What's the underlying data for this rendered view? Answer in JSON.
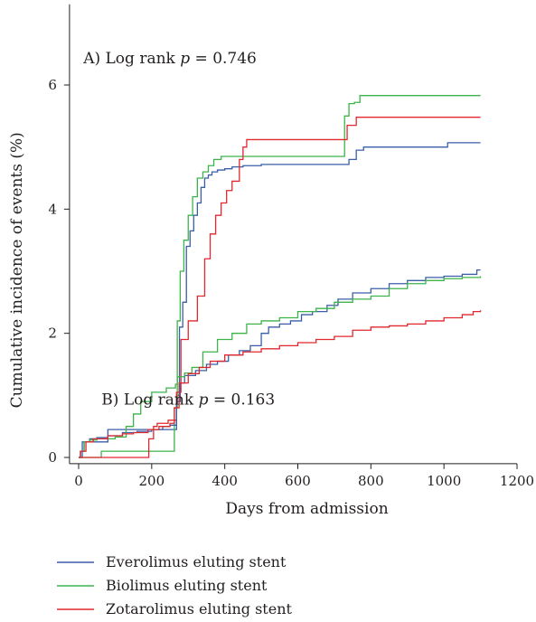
{
  "chart_data": {
    "type": "line",
    "title": "",
    "xlabel": "Days from admission",
    "ylabel": "Cumulative incidence of events (%)",
    "xlim": [
      -25,
      1200
    ],
    "ylim": [
      -0.1,
      7.3
    ],
    "x_ticks": [
      0,
      200,
      400,
      600,
      800,
      1000,
      1200
    ],
    "y_ticks": [
      0,
      2,
      4,
      6
    ],
    "grid": false,
    "legend_position": "bottom-left",
    "legend": [
      {
        "label": "Everolimus eluting stent",
        "color": "#3a5ea8"
      },
      {
        "label": "Biolimus eluting stent",
        "color": "#3cb44a"
      },
      {
        "label": "Zotarolimus eluting stent",
        "color": "#e0282e"
      }
    ],
    "annotations": [
      {
        "text_pre": "A) Log rank ",
        "text_p": "p",
        "text_post": " = 0.746",
        "x": 250,
        "y": 6.35
      },
      {
        "text_pre": "B) Log rank ",
        "text_p": "p",
        "text_post": " = 0.163",
        "x": 300,
        "y": 0.85
      }
    ],
    "panels": [
      {
        "name": "A",
        "series": [
          {
            "legend_index": 0,
            "points": [
              [
                0,
                0
              ],
              [
                5,
                0
              ],
              [
                10,
                0.25
              ],
              [
                70,
                0.25
              ],
              [
                80,
                0.45
              ],
              [
                260,
                0.45
              ],
              [
                268,
                1.0
              ],
              [
                276,
                2.1
              ],
              [
                285,
                2.5
              ],
              [
                295,
                3.4
              ],
              [
                305,
                3.65
              ],
              [
                315,
                3.9
              ],
              [
                325,
                4.1
              ],
              [
                335,
                4.35
              ],
              [
                345,
                4.5
              ],
              [
                355,
                4.55
              ],
              [
                365,
                4.6
              ],
              [
                380,
                4.63
              ],
              [
                400,
                4.65
              ],
              [
                420,
                4.68
              ],
              [
                450,
                4.7
              ],
              [
                500,
                4.72
              ],
              [
                740,
                4.8
              ],
              [
                760,
                4.95
              ],
              [
                780,
                5.0
              ],
              [
                1000,
                5.0
              ],
              [
                1010,
                5.07
              ],
              [
                1100,
                5.07
              ]
            ]
          },
          {
            "legend_index": 1,
            "points": [
              [
                0,
                0
              ],
              [
                60,
                0
              ],
              [
                62,
                0.1
              ],
              [
                250,
                0.1
              ],
              [
                262,
                0.8
              ],
              [
                270,
                2.2
              ],
              [
                278,
                3.0
              ],
              [
                288,
                3.5
              ],
              [
                300,
                3.9
              ],
              [
                312,
                4.2
              ],
              [
                325,
                4.5
              ],
              [
                340,
                4.6
              ],
              [
                355,
                4.7
              ],
              [
                370,
                4.8
              ],
              [
                390,
                4.85
              ],
              [
                720,
                4.85
              ],
              [
                728,
                5.5
              ],
              [
                740,
                5.7
              ],
              [
                755,
                5.72
              ],
              [
                770,
                5.83
              ],
              [
                1100,
                5.83
              ]
            ]
          },
          {
            "legend_index": 2,
            "points": [
              [
                0,
                0
              ],
              [
                180,
                0
              ],
              [
                192,
                0.3
              ],
              [
                205,
                0.5
              ],
              [
                215,
                0.55
              ],
              [
                245,
                0.6
              ],
              [
                268,
                1.05
              ],
              [
                280,
                1.9
              ],
              [
                300,
                2.2
              ],
              [
                325,
                2.6
              ],
              [
                345,
                3.2
              ],
              [
                360,
                3.6
              ],
              [
                375,
                3.9
              ],
              [
                390,
                4.1
              ],
              [
                405,
                4.3
              ],
              [
                420,
                4.45
              ],
              [
                440,
                4.8
              ],
              [
                450,
                5.0
              ],
              [
                460,
                5.12
              ],
              [
                720,
                5.12
              ],
              [
                735,
                5.35
              ],
              [
                760,
                5.48
              ],
              [
                1100,
                5.48
              ]
            ]
          }
        ]
      },
      {
        "name": "B",
        "series": [
          {
            "legend_index": 0,
            "points": [
              [
                0,
                0
              ],
              [
                5,
                0.1
              ],
              [
                15,
                0.25
              ],
              [
                30,
                0.3
              ],
              [
                50,
                0.32
              ],
              [
                80,
                0.35
              ],
              [
                120,
                0.4
              ],
              [
                160,
                0.42
              ],
              [
                200,
                0.45
              ],
              [
                230,
                0.5
              ],
              [
                250,
                0.52
              ],
              [
                268,
                0.9
              ],
              [
                278,
                1.2
              ],
              [
                290,
                1.32
              ],
              [
                320,
                1.4
              ],
              [
                350,
                1.5
              ],
              [
                380,
                1.55
              ],
              [
                410,
                1.65
              ],
              [
                440,
                1.72
              ],
              [
                470,
                1.8
              ],
              [
                500,
                2.0
              ],
              [
                520,
                2.1
              ],
              [
                550,
                2.15
              ],
              [
                580,
                2.2
              ],
              [
                610,
                2.3
              ],
              [
                640,
                2.35
              ],
              [
                680,
                2.45
              ],
              [
                710,
                2.55
              ],
              [
                750,
                2.65
              ],
              [
                800,
                2.72
              ],
              [
                850,
                2.8
              ],
              [
                900,
                2.85
              ],
              [
                950,
                2.9
              ],
              [
                1000,
                2.92
              ],
              [
                1050,
                2.95
              ],
              [
                1090,
                3.02
              ],
              [
                1100,
                3.02
              ]
            ]
          },
          {
            "legend_index": 1,
            "points": [
              [
                0,
                0
              ],
              [
                5,
                0.1
              ],
              [
                15,
                0.25
              ],
              [
                30,
                0.28
              ],
              [
                50,
                0.3
              ],
              [
                100,
                0.33
              ],
              [
                130,
                0.5
              ],
              [
                150,
                0.7
              ],
              [
                170,
                0.9
              ],
              [
                200,
                1.05
              ],
              [
                240,
                1.12
              ],
              [
                265,
                1.18
              ],
              [
                270,
                1.3
              ],
              [
                290,
                1.36
              ],
              [
                310,
                1.45
              ],
              [
                340,
                1.7
              ],
              [
                380,
                1.9
              ],
              [
                420,
                2.0
              ],
              [
                460,
                2.15
              ],
              [
                500,
                2.2
              ],
              [
                550,
                2.25
              ],
              [
                600,
                2.35
              ],
              [
                650,
                2.4
              ],
              [
                700,
                2.5
              ],
              [
                750,
                2.55
              ],
              [
                800,
                2.6
              ],
              [
                850,
                2.72
              ],
              [
                900,
                2.8
              ],
              [
                950,
                2.85
              ],
              [
                1000,
                2.88
              ],
              [
                1050,
                2.9
              ],
              [
                1100,
                2.92
              ]
            ]
          },
          {
            "legend_index": 2,
            "points": [
              [
                0,
                0
              ],
              [
                5,
                0.1
              ],
              [
                20,
                0.25
              ],
              [
                40,
                0.3
              ],
              [
                80,
                0.35
              ],
              [
                120,
                0.38
              ],
              [
                150,
                0.4
              ],
              [
                190,
                0.45
              ],
              [
                220,
                0.5
              ],
              [
                250,
                0.55
              ],
              [
                262,
                0.8
              ],
              [
                275,
                1.2
              ],
              [
                300,
                1.35
              ],
              [
                330,
                1.45
              ],
              [
                360,
                1.55
              ],
              [
                400,
                1.65
              ],
              [
                450,
                1.7
              ],
              [
                500,
                1.75
              ],
              [
                550,
                1.8
              ],
              [
                600,
                1.85
              ],
              [
                650,
                1.9
              ],
              [
                700,
                1.95
              ],
              [
                750,
                2.05
              ],
              [
                800,
                2.1
              ],
              [
                850,
                2.12
              ],
              [
                900,
                2.15
              ],
              [
                950,
                2.2
              ],
              [
                1000,
                2.25
              ],
              [
                1050,
                2.3
              ],
              [
                1080,
                2.35
              ],
              [
                1100,
                2.37
              ]
            ]
          }
        ]
      }
    ]
  }
}
